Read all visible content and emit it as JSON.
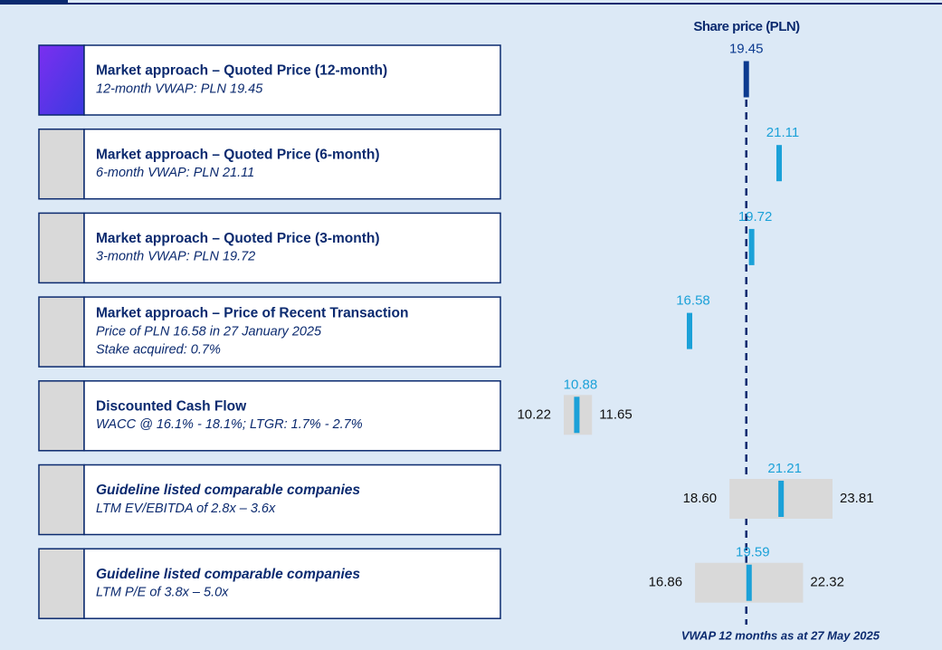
{
  "chart_data": {
    "type": "football-field",
    "title": "Share price (PLN)",
    "footnote": "VWAP 12 months as at 27 May 2025",
    "reference_value": 19.45,
    "color": "#1ba1d8",
    "highlight_color": "#0b3a8f",
    "range_color": "#d9d9d9",
    "highlight_row": 0,
    "rows": [
      {
        "title": "Market approach – Quoted Price (12-month)",
        "lines": [
          "12-month VWAP: PLN 19.45"
        ],
        "value": 19.45
      },
      {
        "title": "Market approach – Quoted Price (6-month)",
        "lines": [
          "6-month VWAP: PLN 21.11"
        ],
        "value": 21.11
      },
      {
        "title": "Market approach – Quoted Price (3-month)",
        "lines": [
          "3-month VWAP: PLN 19.72"
        ],
        "value": 19.72
      },
      {
        "title": "Market approach – Price of Recent Transaction",
        "lines": [
          "Price of PLN 16.58 in 27 January 2025",
          "Stake acquired: 0.7%"
        ],
        "value": 16.58
      },
      {
        "title": "Discounted Cash Flow",
        "lines": [
          "WACC @ 16.1% - 18.1%; LTGR: 1.7% - 2.7%"
        ],
        "value": 10.88,
        "low": 10.22,
        "high": 11.65
      },
      {
        "title": "Guideline listed comparable companies",
        "title_style": "italic",
        "lines": [
          "LTM EV/EBITDA of 2.8x – 3.6x"
        ],
        "value": 21.21,
        "low": 18.6,
        "low_label": "18.60",
        "high": 23.81
      },
      {
        "title": "Guideline listed comparable companies",
        "title_style": "italic",
        "lines": [
          "LTM P/E of 3.8x – 5.0x"
        ],
        "value": 19.59,
        "low": 16.86,
        "high": 22.32
      }
    ]
  }
}
